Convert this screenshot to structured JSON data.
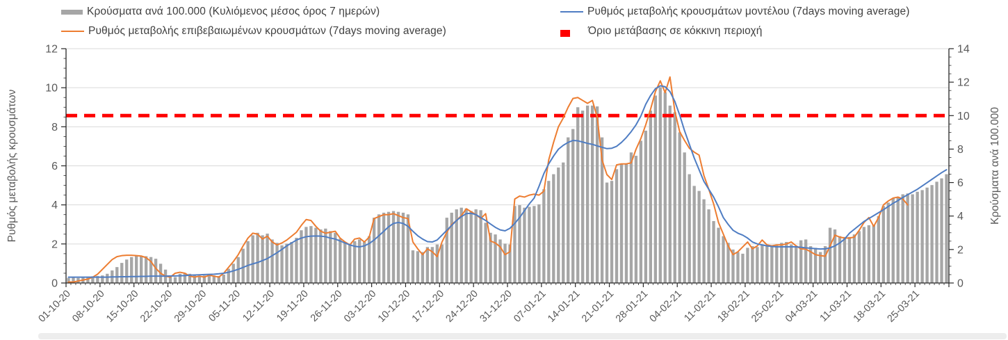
{
  "legend": {
    "items": [
      {
        "label": "Κρούσματα ανά 100.000 (Κυλιόμενος μέσος όρος 7 ημερών)",
        "type": "bar",
        "color": "#A6A6A6"
      },
      {
        "label": "Ρυθμός μεταβολής επιβεβαιωμένων κρουσμάτων (7days moving average)",
        "type": "line",
        "color": "#ED7D31"
      },
      {
        "label": "Ρυθμός μεταβολής κρουσμάτων μοντέλου (7days moving average)",
        "type": "line",
        "color": "#4F7DC3"
      },
      {
        "label": "Όριο μετάβασης σε κόκκινη περιοχή",
        "type": "dash",
        "color": "#FE0000"
      }
    ]
  },
  "chart_data": {
    "type": "combo (bar + line)",
    "start_date": "01-10-20",
    "end_date": "31-03-21",
    "frequency": "daily",
    "x_tick_labels": [
      "01-10-20",
      "08-10-20",
      "15-10-20",
      "22-10-20",
      "29-10-20",
      "05-11-20",
      "12-11-20",
      "19-11-20",
      "26-11-20",
      "03-12-20",
      "10-12-20",
      "17-12-20",
      "24-12-20",
      "31-12-20",
      "07-01-21",
      "14-01-21",
      "21-01-21",
      "28-01-21",
      "04-02-21",
      "11-02-21",
      "18-02-21",
      "25-02-21",
      "04-03-21",
      "11-03-21",
      "18-03-21",
      "25-03-21"
    ],
    "x_tick_day_step": 7,
    "left_axis": {
      "title": "Ρυθμός μεταβολής κρουσμάτων",
      "min": 0,
      "max": 12,
      "major": 2,
      "minor": 0.5,
      "ticks": [
        "0",
        "2",
        "4",
        "6",
        "8",
        "10",
        "12"
      ]
    },
    "right_axis": {
      "title": "Κρούσματα ανά 100.000",
      "min": 0,
      "max": 14,
      "major": 2,
      "minor": 0.5,
      "ticks": [
        "0",
        "2",
        "4",
        "6",
        "8",
        "10",
        "12",
        "14"
      ]
    },
    "threshold": {
      "label": "Όριο μετάβασης σε κόκκινη περιοχή",
      "axis": "right",
      "value": 10,
      "color": "#FE0000"
    },
    "grid": {
      "on": true,
      "axis": "left",
      "values": [
        2,
        4,
        6,
        8,
        10,
        12
      ],
      "color": "#D9D9D9"
    },
    "series": [
      {
        "name": "Κρούσματα ανά 100.000 (Κυλιόμενος μέσος όρος 7 ημερών)",
        "type": "bar",
        "axis": "right",
        "color": "#A6A6A6",
        "values": [
          0.3,
          0.32,
          0.3,
          0.33,
          0.38,
          0.4,
          0.42,
          0.45,
          0.55,
          0.75,
          0.95,
          1.2,
          1.4,
          1.55,
          1.6,
          1.62,
          1.6,
          1.55,
          1.45,
          1.15,
          0.8,
          0.45,
          0.35,
          0.55,
          0.6,
          0.55,
          0.45,
          0.4,
          0.45,
          0.48,
          0.45,
          0.42,
          0.5,
          0.85,
          1.15,
          1.55,
          2.05,
          2.5,
          2.85,
          3.0,
          2.85,
          2.95,
          2.6,
          2.4,
          2.25,
          2.35,
          2.45,
          2.7,
          3.15,
          3.35,
          3.4,
          3.3,
          3.2,
          3.25,
          3.1,
          3.0,
          2.65,
          2.45,
          2.35,
          2.5,
          2.6,
          2.45,
          2.8,
          3.9,
          4.1,
          4.2,
          4.25,
          4.3,
          4.25,
          4.2,
          4.1,
          1.95,
          1.9,
          1.85,
          2.15,
          2.15,
          2.3,
          2.3,
          3.9,
          4.2,
          4.4,
          4.5,
          4.45,
          4.3,
          4.4,
          4.35,
          3.6,
          3.0,
          2.9,
          2.6,
          2.35,
          2.3,
          4.6,
          4.65,
          4.5,
          4.55,
          4.6,
          4.7,
          5.6,
          6.1,
          6.5,
          6.9,
          7.2,
          8.7,
          9.2,
          10.5,
          10.3,
          10.6,
          10.6,
          10.55,
          8.7,
          6.0,
          6.1,
          6.8,
          7.1,
          7.15,
          7.8,
          7.6,
          8.5,
          9.1,
          10.3,
          11.2,
          11.7,
          11.4,
          10.6,
          10.2,
          9.0,
          7.8,
          6.5,
          5.8,
          5.5,
          5.0,
          4.4,
          3.7,
          3.3,
          2.8,
          2.4,
          2.0,
          1.85,
          1.75,
          2.1,
          2.2,
          2.15,
          2.3,
          2.2,
          2.25,
          2.3,
          2.4,
          2.45,
          2.3,
          2.2,
          2.55,
          2.6,
          2.2,
          2.1,
          1.85,
          2.2,
          3.3,
          3.2,
          2.8,
          2.75,
          2.75,
          2.9,
          3.1,
          3.35,
          3.45,
          3.45,
          4.0,
          4.6,
          4.8,
          5.05,
          5.1,
          5.3,
          5.35,
          5.3,
          5.45,
          5.55,
          5.7,
          5.85,
          6.05,
          6.25,
          6.5
        ]
      },
      {
        "name": "Ρυθμός μεταβολής επιβεβαιωμένων κρουσμάτων (7days moving average)",
        "type": "line",
        "axis": "left",
        "color": "#ED7D31",
        "values": [
          0.05,
          0.05,
          0.1,
          0.15,
          0.2,
          0.3,
          0.45,
          0.7,
          0.95,
          1.2,
          1.35,
          1.4,
          1.42,
          1.42,
          1.4,
          1.38,
          1.3,
          1.1,
          0.75,
          0.5,
          0.35,
          0.3,
          0.5,
          0.55,
          0.5,
          0.35,
          0.3,
          0.35,
          0.3,
          0.4,
          0.35,
          0.3,
          0.5,
          0.8,
          1.1,
          1.45,
          1.9,
          2.3,
          2.55,
          2.5,
          2.25,
          2.4,
          2.1,
          1.95,
          2.05,
          2.2,
          2.4,
          2.6,
          2.95,
          3.25,
          3.2,
          2.9,
          2.65,
          2.55,
          2.6,
          2.65,
          2.3,
          2.1,
          1.95,
          2.25,
          2.3,
          2.1,
          2.35,
          3.3,
          3.4,
          3.5,
          3.5,
          3.55,
          3.45,
          3.35,
          3.3,
          2.1,
          1.75,
          1.45,
          1.75,
          1.6,
          1.35,
          2.1,
          2.6,
          3.0,
          3.2,
          3.45,
          3.8,
          3.65,
          3.5,
          3.3,
          3.55,
          2.15,
          2.05,
          1.85,
          1.45,
          1.6,
          4.3,
          4.45,
          4.4,
          4.5,
          4.55,
          4.5,
          4.7,
          6.3,
          7.2,
          8.0,
          8.45,
          9.0,
          9.45,
          9.5,
          9.35,
          9.2,
          9.35,
          8.5,
          6.3,
          5.55,
          5.3,
          6.05,
          6.1,
          6.1,
          6.15,
          6.85,
          7.4,
          8.1,
          8.9,
          9.8,
          10.35,
          9.75,
          10.55,
          8.8,
          7.75,
          7.3,
          6.9,
          6.7,
          6.55,
          5.5,
          4.8,
          4.05,
          3.1,
          2.5,
          1.9,
          1.45,
          1.6,
          1.85,
          2.1,
          1.75,
          1.9,
          2.2,
          1.95,
          1.9,
          1.95,
          1.95,
          2.0,
          2.1,
          1.9,
          1.75,
          1.73,
          1.6,
          1.45,
          1.4,
          1.37,
          1.9,
          2.45,
          2.35,
          2.3,
          2.3,
          2.35,
          2.7,
          3.1,
          3.35,
          2.9,
          3.35,
          4.0,
          4.2,
          4.35,
          4.4,
          4.3,
          4.0,
          null,
          null,
          null,
          null,
          null,
          null,
          null,
          null
        ]
      },
      {
        "name": "Ρυθμός μεταβολής κρουσμάτων μοντέλου (7days moving average)",
        "type": "line",
        "axis": "left",
        "color": "#4F7DC3",
        "values": [
          0.3,
          0.3,
          0.3,
          0.3,
          0.3,
          0.3,
          0.3,
          0.3,
          0.3,
          0.31,
          0.31,
          0.32,
          0.32,
          0.33,
          0.33,
          0.34,
          0.34,
          0.35,
          0.35,
          0.35,
          0.35,
          0.36,
          0.36,
          0.37,
          0.38,
          0.4,
          0.41,
          0.42,
          0.43,
          0.44,
          0.45,
          0.47,
          0.5,
          0.55,
          0.62,
          0.7,
          0.8,
          0.9,
          0.98,
          1.05,
          1.15,
          1.25,
          1.4,
          1.55,
          1.72,
          1.9,
          2.05,
          2.2,
          2.3,
          2.37,
          2.4,
          2.41,
          2.4,
          2.37,
          2.3,
          2.25,
          2.15,
          2.05,
          1.95,
          1.88,
          1.85,
          1.9,
          2.02,
          2.2,
          2.42,
          2.65,
          2.88,
          3.05,
          3.1,
          3.05,
          2.9,
          2.65,
          2.42,
          2.25,
          2.12,
          2.1,
          2.2,
          2.45,
          2.7,
          2.95,
          3.2,
          3.4,
          3.55,
          3.57,
          3.5,
          3.35,
          3.2,
          3.02,
          2.85,
          2.72,
          2.67,
          2.8,
          3.05,
          3.35,
          3.7,
          4.05,
          4.35,
          4.95,
          5.6,
          6.1,
          6.5,
          6.85,
          7.05,
          7.2,
          7.3,
          7.28,
          7.22,
          7.15,
          7.1,
          7.02,
          6.95,
          6.88,
          6.9,
          7.0,
          7.2,
          7.45,
          7.75,
          8.1,
          8.55,
          9.15,
          9.6,
          9.95,
          10.1,
          10.05,
          9.8,
          9.3,
          8.6,
          7.8,
          7.1,
          6.4,
          5.8,
          5.2,
          4.8,
          4.4,
          3.9,
          3.35,
          3.0,
          2.7,
          2.55,
          2.45,
          2.3,
          2.1,
          2.0,
          1.95,
          1.9,
          1.87,
          1.85,
          1.85,
          1.85,
          1.85,
          1.85,
          1.83,
          1.8,
          1.78,
          1.76,
          1.74,
          1.75,
          1.8,
          1.9,
          2.05,
          2.25,
          2.55,
          2.75,
          2.95,
          3.15,
          3.3,
          3.45,
          3.6,
          3.75,
          3.92,
          4.08,
          4.22,
          4.38,
          4.52,
          4.66,
          4.8,
          4.97,
          5.14,
          5.31,
          5.48,
          5.65,
          5.8
        ]
      }
    ]
  }
}
